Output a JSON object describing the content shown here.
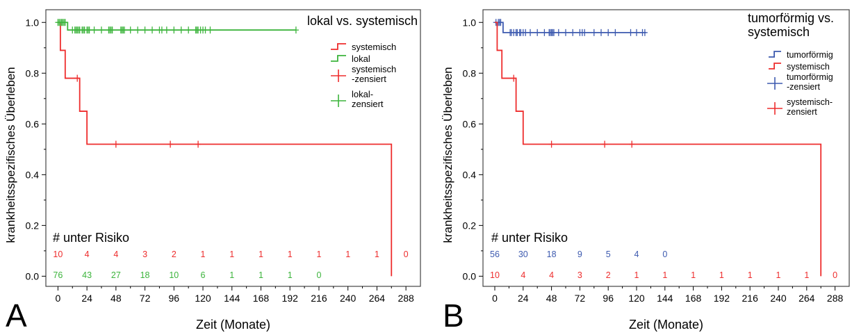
{
  "chart_data": [
    {
      "panel_label": "A",
      "type": "line",
      "step": true,
      "title": "lokal vs. systemisch",
      "xlabel": "Zeit (Monate)",
      "ylabel": "krankheitsspezifisches Überleben",
      "xlim": [
        -10,
        300
      ],
      "ylim": [
        -0.04,
        1.05
      ],
      "x_ticks": [
        0,
        24,
        48,
        72,
        96,
        120,
        144,
        168,
        192,
        216,
        240,
        264,
        288
      ],
      "y_ticks": [
        "0.0",
        "0.2",
        "0.4",
        "0.6",
        "0.8",
        "1.0"
      ],
      "grid": false,
      "legend_position": "top-right",
      "legend": [
        {
          "label": "systemisch",
          "kind": "step",
          "color": "#ee2d2d"
        },
        {
          "label": "lokal",
          "kind": "step",
          "color": "#3cb43c"
        },
        {
          "label_lines": [
            "systemisch",
            "-zensiert"
          ],
          "kind": "cross",
          "color": "#ee2d2d"
        },
        {
          "label_lines": [
            "lokal-",
            "zensiert"
          ],
          "kind": "cross",
          "color": "#3cb43c"
        }
      ],
      "series": [
        {
          "name": "systemisch",
          "color": "#ee2d2d",
          "steps": [
            [
              0,
              1.0
            ],
            [
              2,
              0.89
            ],
            [
              6,
              0.78
            ],
            [
              18,
              0.65
            ],
            [
              24,
              0.52
            ],
            [
              276,
              0.0
            ]
          ],
          "censored": [
            [
              16,
              0.78
            ],
            [
              48,
              0.52
            ],
            [
              93,
              0.52
            ],
            [
              116,
              0.52
            ]
          ]
        },
        {
          "name": "lokal",
          "color": "#3cb43c",
          "steps": [
            [
              0,
              1.0
            ],
            [
              8,
              0.97
            ],
            [
              197,
              0.97
            ]
          ],
          "censored": [
            [
              0,
              1.0
            ],
            [
              1,
              1.0
            ],
            [
              2,
              1.0
            ],
            [
              3,
              1.0
            ],
            [
              4,
              1.0
            ],
            [
              5,
              1.0
            ],
            [
              6,
              1.0
            ],
            [
              12,
              0.97
            ],
            [
              14,
              0.97
            ],
            [
              15,
              0.97
            ],
            [
              16,
              0.97
            ],
            [
              17,
              0.97
            ],
            [
              18,
              0.97
            ],
            [
              20,
              0.97
            ],
            [
              21,
              0.97
            ],
            [
              22,
              0.97
            ],
            [
              24,
              0.97
            ],
            [
              25,
              0.97
            ],
            [
              26,
              0.97
            ],
            [
              30,
              0.97
            ],
            [
              36,
              0.97
            ],
            [
              42,
              0.97
            ],
            [
              43,
              0.97
            ],
            [
              44,
              0.97
            ],
            [
              45,
              0.97
            ],
            [
              52,
              0.97
            ],
            [
              53,
              0.97
            ],
            [
              54,
              0.97
            ],
            [
              55,
              0.97
            ],
            [
              60,
              0.97
            ],
            [
              66,
              0.97
            ],
            [
              72,
              0.97
            ],
            [
              78,
              0.97
            ],
            [
              84,
              0.97
            ],
            [
              86,
              0.97
            ],
            [
              90,
              0.97
            ],
            [
              96,
              0.97
            ],
            [
              102,
              0.97
            ],
            [
              108,
              0.97
            ],
            [
              114,
              0.97
            ],
            [
              115,
              0.97
            ],
            [
              116,
              0.97
            ],
            [
              118,
              0.97
            ],
            [
              120,
              0.97
            ],
            [
              122,
              0.97
            ],
            [
              126,
              0.97
            ],
            [
              197,
              0.97
            ]
          ]
        }
      ],
      "at_risk": {
        "header": "# unter  Risiko",
        "rows": [
          {
            "color": "#ee2d2d",
            "values": [
              "10",
              "4",
              "4",
              "3",
              "2",
              "1",
              "1",
              "1",
              "1",
              "1",
              "1",
              "1",
              "0"
            ]
          },
          {
            "color": "#3cb43c",
            "values": [
              "76",
              "43",
              "27",
              "18",
              "10",
              "6",
              "1",
              "1",
              "1",
              "0"
            ]
          }
        ]
      },
      "colors": {
        "axis": "#000000"
      }
    },
    {
      "panel_label": "B",
      "type": "line",
      "step": true,
      "title_lines": [
        "tumorförmig vs.",
        "systemisch"
      ],
      "xlabel": "Zeit (Monate)",
      "ylabel": "krankheitsspezifisches Überleben",
      "xlim": [
        -10,
        300
      ],
      "ylim": [
        -0.04,
        1.05
      ],
      "x_ticks": [
        0,
        24,
        48,
        72,
        96,
        120,
        144,
        168,
        192,
        216,
        240,
        264,
        288
      ],
      "y_ticks": [
        "0.0",
        "0.2",
        "0.4",
        "0.6",
        "0.8",
        "1.0"
      ],
      "grid": false,
      "legend_position": "top-right",
      "legend": [
        {
          "label": "tumorförmig",
          "kind": "step",
          "color": "#3d5aaf"
        },
        {
          "label": "systemisch",
          "kind": "step",
          "color": "#ee2d2d"
        },
        {
          "label_lines": [
            "tumorförmig",
            "-zensiert"
          ],
          "kind": "cross",
          "color": "#3d5aaf"
        },
        {
          "label_lines": [
            "systemisch-",
            "zensiert"
          ],
          "kind": "cross",
          "color": "#ee2d2d"
        }
      ],
      "series": [
        {
          "name": "tumorförmig",
          "color": "#3d5aaf",
          "steps": [
            [
              0,
              1.0
            ],
            [
              7,
              0.96
            ],
            [
              128,
              0.96
            ]
          ],
          "censored": [
            [
              1,
              1.0
            ],
            [
              3,
              1.0
            ],
            [
              4,
              1.0
            ],
            [
              5,
              1.0
            ],
            [
              13,
              0.96
            ],
            [
              14,
              0.96
            ],
            [
              16,
              0.96
            ],
            [
              18,
              0.96
            ],
            [
              19,
              0.96
            ],
            [
              21,
              0.96
            ],
            [
              22,
              0.96
            ],
            [
              24,
              0.96
            ],
            [
              26,
              0.96
            ],
            [
              30,
              0.96
            ],
            [
              36,
              0.96
            ],
            [
              42,
              0.96
            ],
            [
              46,
              0.96
            ],
            [
              47,
              0.96
            ],
            [
              48,
              0.96
            ],
            [
              49,
              0.96
            ],
            [
              50,
              0.96
            ],
            [
              54,
              0.96
            ],
            [
              60,
              0.96
            ],
            [
              66,
              0.96
            ],
            [
              72,
              0.96
            ],
            [
              74,
              0.96
            ],
            [
              76,
              0.96
            ],
            [
              84,
              0.96
            ],
            [
              90,
              0.96
            ],
            [
              96,
              0.96
            ],
            [
              102,
              0.96
            ],
            [
              115,
              0.96
            ],
            [
              120,
              0.96
            ],
            [
              125,
              0.96
            ],
            [
              127,
              0.96
            ]
          ]
        },
        {
          "name": "systemisch",
          "color": "#ee2d2d",
          "steps": [
            [
              0,
              1.0
            ],
            [
              2,
              0.89
            ],
            [
              6,
              0.78
            ],
            [
              18,
              0.65
            ],
            [
              24,
              0.52
            ],
            [
              276,
              0.0
            ]
          ],
          "censored": [
            [
              16,
              0.78
            ],
            [
              48,
              0.52
            ],
            [
              93,
              0.52
            ],
            [
              116,
              0.52
            ]
          ]
        }
      ],
      "at_risk": {
        "header": "# unter Risiko",
        "rows": [
          {
            "color": "#3d5aaf",
            "values": [
              "56",
              "30",
              "18",
              "9",
              "5",
              "4",
              "0"
            ]
          },
          {
            "color": "#ee2d2d",
            "values": [
              "10",
              "4",
              "4",
              "3",
              "2",
              "1",
              "1",
              "1",
              "1",
              "1",
              "1",
              "1",
              "0"
            ]
          }
        ]
      },
      "colors": {
        "axis": "#000000"
      }
    }
  ]
}
